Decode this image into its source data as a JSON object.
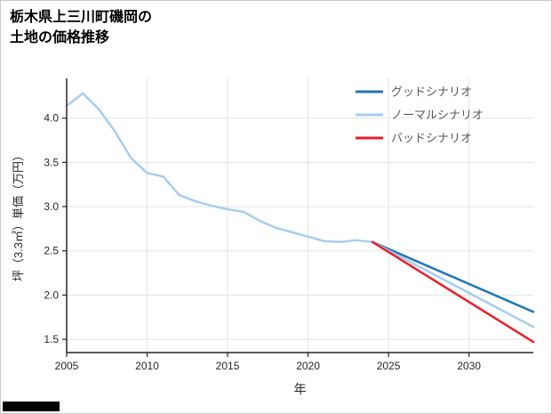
{
  "title_lines": [
    "栃木県上三川町磯岡の",
    "土地の価格推移"
  ],
  "chart_data": {
    "type": "line",
    "title": "栃木県上三川町磯岡の土地の価格推移",
    "xlabel": "年",
    "ylabel": "坪（3.3㎡）単価（万円）",
    "xlim": [
      2005,
      2034
    ],
    "ylim": [
      1.35,
      4.45
    ],
    "grid": true,
    "legend_position": "upper right",
    "x_ticks": [
      2005,
      2010,
      2015,
      2020,
      2025,
      2030
    ],
    "x_tick_labels": [
      "2005",
      "2010",
      "2015",
      "2020",
      "2025",
      "2030"
    ],
    "y_ticks": [
      1.5,
      2.0,
      2.5,
      3.0,
      3.5,
      4.0
    ],
    "y_tick_labels": [
      "1.5",
      "2.0",
      "2.5",
      "3.0",
      "3.5",
      "4.0"
    ],
    "colors": {
      "grid": "#e3e3e3",
      "spine": "#262626",
      "tick_label": "#262626",
      "legend_text": "#595959"
    },
    "series": [
      {
        "id": "history",
        "name": "",
        "in_legend": false,
        "color": "#a6cdf0",
        "x": [
          2005,
          2006,
          2007,
          2008,
          2009,
          2010,
          2011,
          2012,
          2013,
          2014,
          2015,
          2016,
          2017,
          2018,
          2019,
          2020,
          2021,
          2022,
          2023,
          2024
        ],
        "values": [
          4.14,
          4.28,
          4.1,
          3.85,
          3.55,
          3.38,
          3.34,
          3.13,
          3.06,
          3.01,
          2.97,
          2.94,
          2.84,
          2.76,
          2.71,
          2.66,
          2.61,
          2.6,
          2.62,
          2.6
        ]
      },
      {
        "id": "good-scenario",
        "name": "グッドシナリオ",
        "in_legend": true,
        "color": "#1f77b4",
        "x": [
          2024,
          2034
        ],
        "values": [
          2.6,
          1.81
        ]
      },
      {
        "id": "normal-scenario",
        "name": "ノーマルシナリオ",
        "in_legend": true,
        "color": "#a6cdf0",
        "x": [
          2024,
          2034
        ],
        "values": [
          2.6,
          1.64
        ]
      },
      {
        "id": "bad-scenario",
        "name": "バッドシナリオ",
        "in_legend": true,
        "color": "#e8202a",
        "x": [
          2024,
          2034
        ],
        "values": [
          2.6,
          1.47
        ]
      }
    ]
  }
}
